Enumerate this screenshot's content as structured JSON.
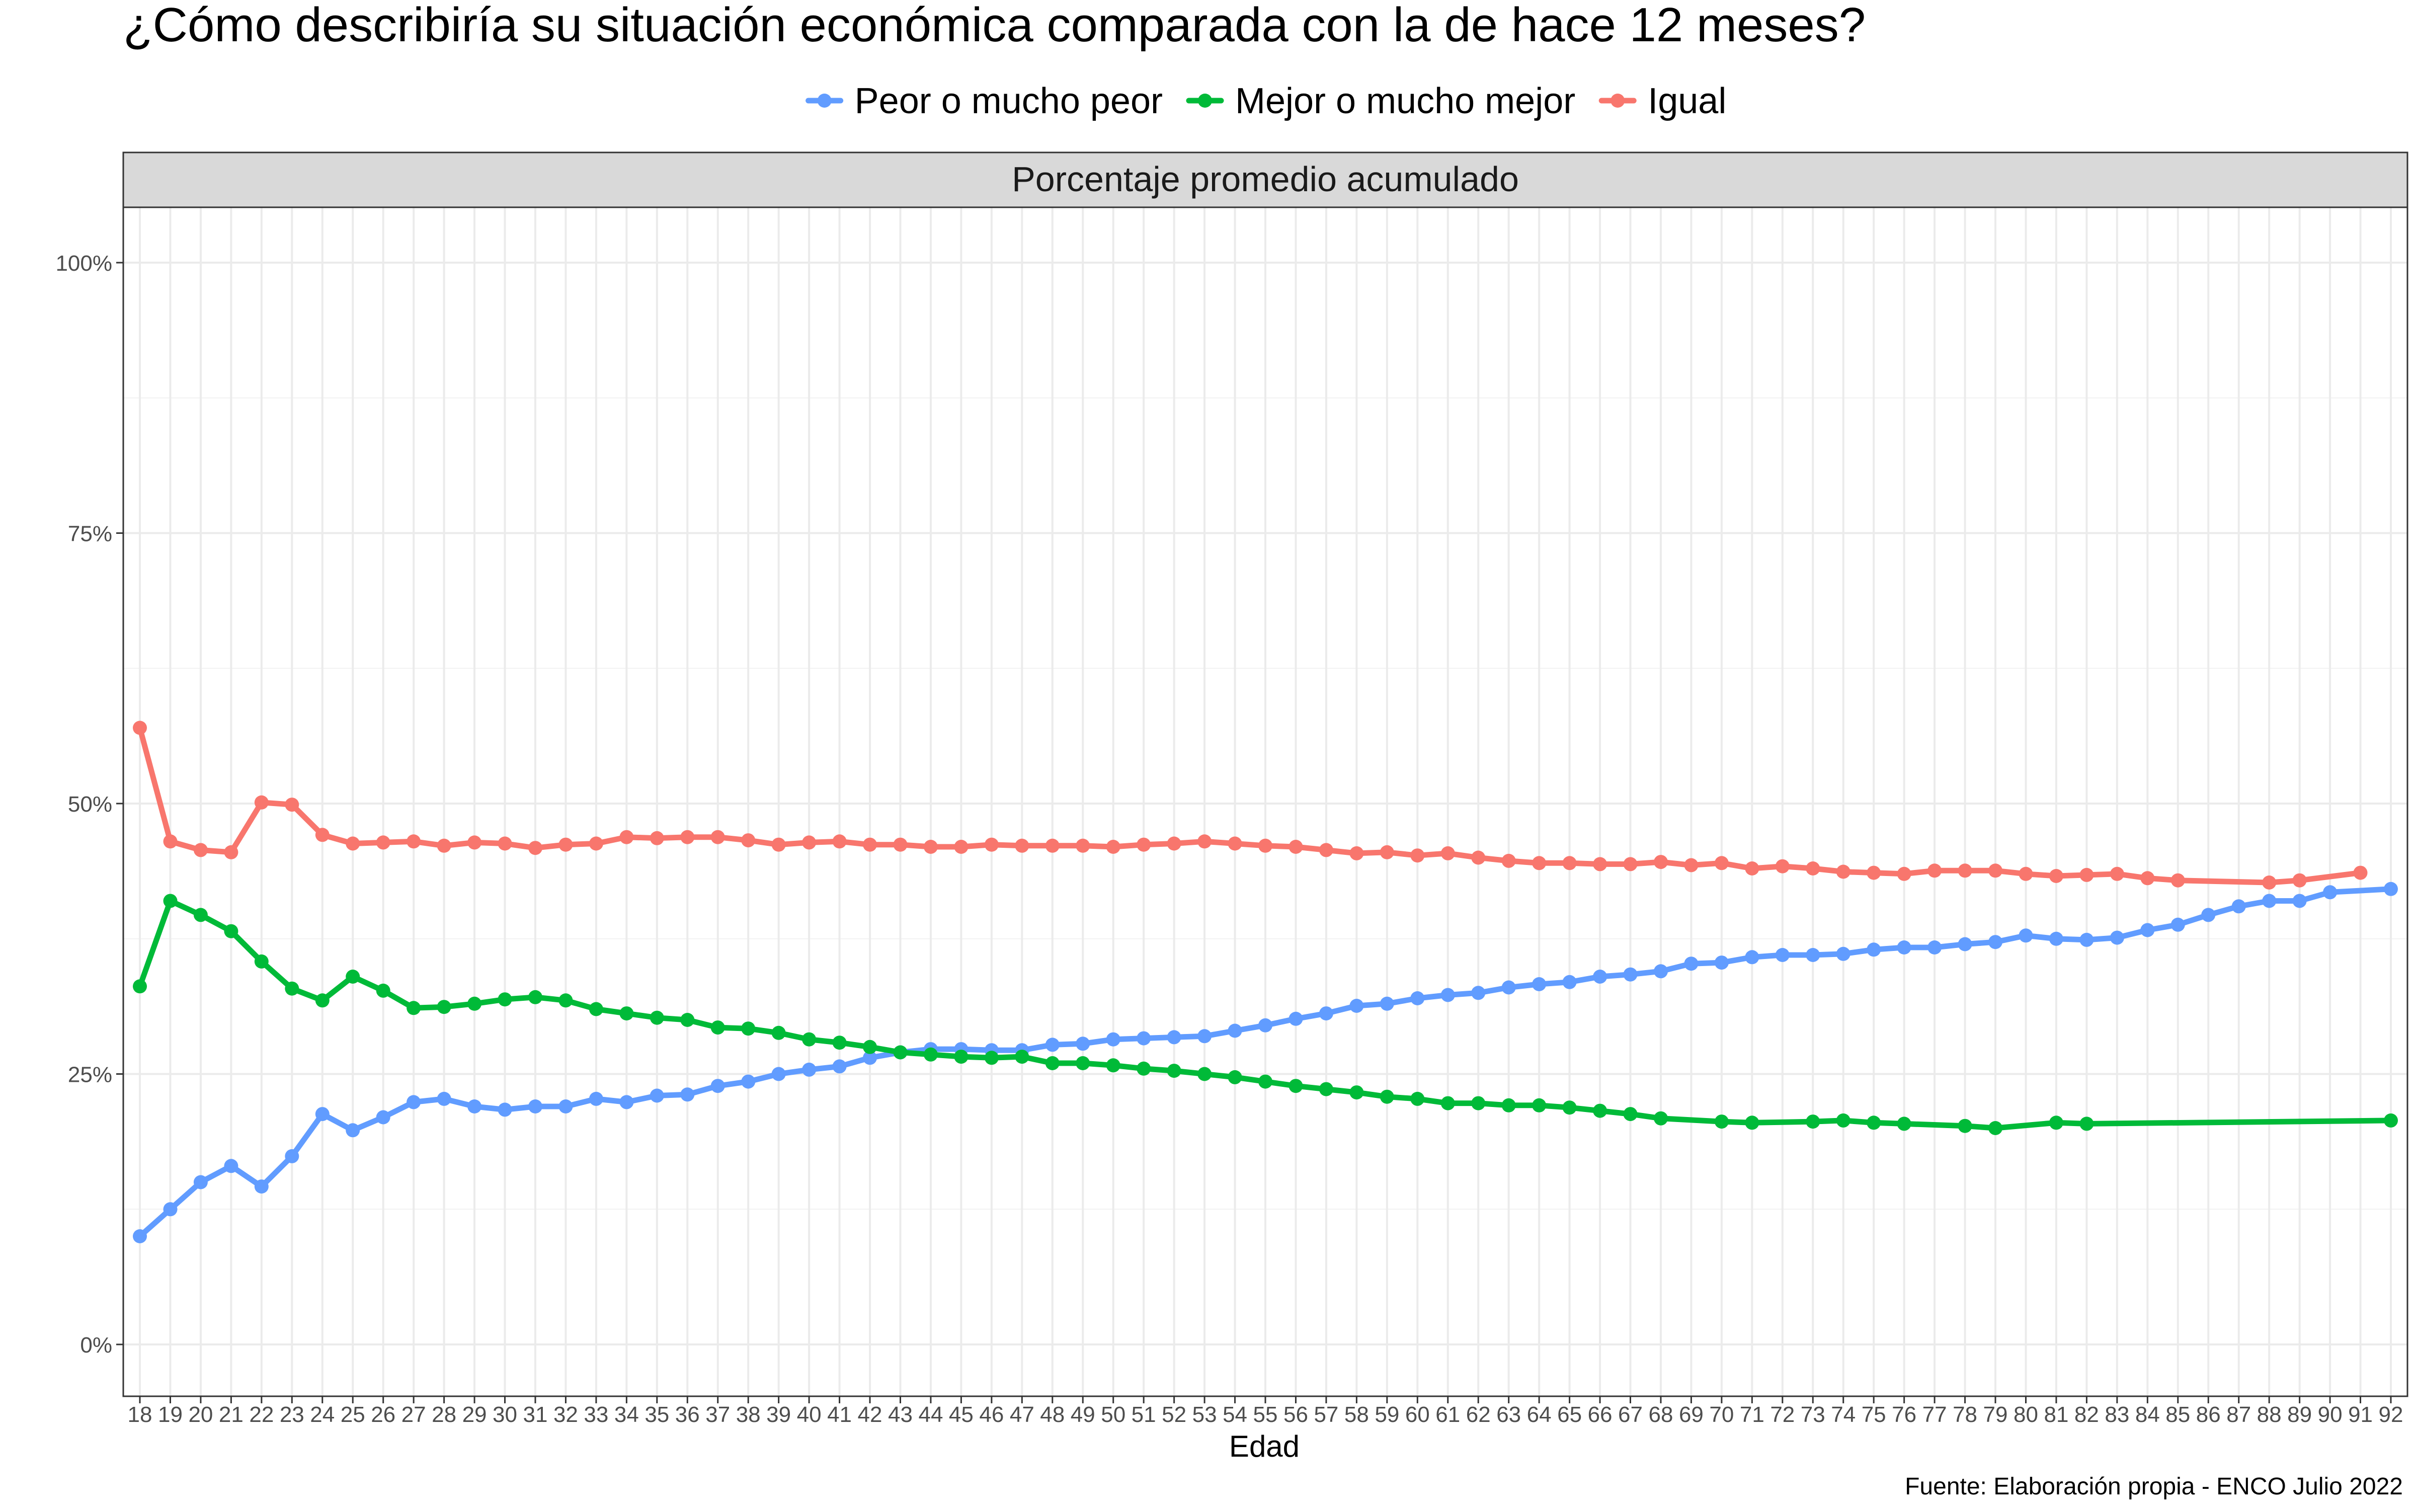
{
  "chart_data": {
    "type": "line",
    "title": "¿Cómo describiría su situación económica comparada con la de hace 12 meses?",
    "facet_label": "Porcentaje promedio acumulado",
    "xlabel": "Edad",
    "ylabel": "",
    "caption": "Fuente: Elaboración propia - ENCO Julio 2022",
    "legend_position": "top",
    "grid": true,
    "xlim": [
      18,
      92
    ],
    "ylim": [
      0,
      1
    ],
    "y_ticks": [
      0,
      0.25,
      0.5,
      0.75,
      1
    ],
    "y_tick_labels": [
      "0%",
      "25%",
      "50%",
      "75%",
      "100%"
    ],
    "x_ticks": [
      18,
      19,
      20,
      21,
      22,
      23,
      24,
      25,
      26,
      27,
      28,
      29,
      30,
      31,
      32,
      33,
      34,
      35,
      36,
      37,
      38,
      39,
      40,
      41,
      42,
      43,
      44,
      45,
      46,
      47,
      48,
      49,
      50,
      51,
      52,
      53,
      54,
      55,
      56,
      57,
      58,
      59,
      60,
      61,
      62,
      63,
      64,
      65,
      66,
      67,
      68,
      69,
      70,
      71,
      72,
      73,
      74,
      75,
      76,
      77,
      78,
      79,
      80,
      81,
      82,
      83,
      84,
      85,
      86,
      87,
      88,
      89,
      90,
      91,
      92
    ],
    "series": [
      {
        "name": "Peor o mucho peor",
        "color": "#619CFF",
        "x": [
          18,
          19,
          20,
          21,
          22,
          23,
          24,
          25,
          26,
          27,
          28,
          29,
          30,
          31,
          32,
          33,
          34,
          35,
          36,
          37,
          38,
          39,
          40,
          41,
          42,
          43,
          44,
          45,
          46,
          47,
          48,
          49,
          50,
          51,
          52,
          53,
          54,
          55,
          56,
          57,
          58,
          59,
          60,
          61,
          62,
          63,
          64,
          65,
          66,
          67,
          68,
          69,
          70,
          71,
          72,
          73,
          74,
          75,
          76,
          77,
          78,
          79,
          80,
          81,
          82,
          83,
          84,
          85,
          86,
          87,
          88,
          89,
          90,
          92
        ],
        "values": [
          0.1,
          0.125,
          0.15,
          0.165,
          0.146,
          0.174,
          0.213,
          0.198,
          0.21,
          0.224,
          0.227,
          0.22,
          0.217,
          0.22,
          0.22,
          0.227,
          0.224,
          0.23,
          0.231,
          0.239,
          0.243,
          0.25,
          0.254,
          0.257,
          0.265,
          0.27,
          0.273,
          0.273,
          0.272,
          0.272,
          0.277,
          0.278,
          0.282,
          0.283,
          0.284,
          0.285,
          0.29,
          0.295,
          0.301,
          0.306,
          0.313,
          0.315,
          0.32,
          0.323,
          0.325,
          0.33,
          0.333,
          0.335,
          0.34,
          0.342,
          0.345,
          0.352,
          0.353,
          0.358,
          0.36,
          0.36,
          0.361,
          0.365,
          0.367,
          0.367,
          0.37,
          0.372,
          0.378,
          0.375,
          0.374,
          0.376,
          0.383,
          0.388,
          0.397,
          0.405,
          0.41,
          0.41,
          0.418,
          0.421
        ]
      },
      {
        "name": "Mejor o mucho mejor",
        "color": "#00BA38",
        "x": [
          18,
          19,
          20,
          21,
          22,
          23,
          24,
          25,
          26,
          27,
          28,
          29,
          30,
          31,
          32,
          33,
          34,
          35,
          36,
          37,
          38,
          39,
          40,
          41,
          42,
          43,
          44,
          45,
          46,
          47,
          48,
          49,
          50,
          51,
          52,
          53,
          54,
          55,
          56,
          57,
          58,
          59,
          60,
          61,
          62,
          63,
          64,
          65,
          66,
          67,
          68,
          70,
          71,
          73,
          74,
          75,
          76,
          78,
          79,
          81,
          82,
          92
        ],
        "values": [
          0.331,
          0.41,
          0.397,
          0.382,
          0.354,
          0.329,
          0.318,
          0.34,
          0.327,
          0.311,
          0.312,
          0.315,
          0.319,
          0.321,
          0.318,
          0.31,
          0.306,
          0.302,
          0.3,
          0.293,
          0.292,
          0.288,
          0.282,
          0.279,
          0.275,
          0.27,
          0.268,
          0.266,
          0.265,
          0.266,
          0.26,
          0.26,
          0.258,
          0.255,
          0.253,
          0.25,
          0.247,
          0.243,
          0.239,
          0.236,
          0.233,
          0.229,
          0.227,
          0.223,
          0.223,
          0.221,
          0.221,
          0.219,
          0.216,
          0.213,
          0.209,
          0.206,
          0.205,
          0.206,
          0.207,
          0.205,
          0.204,
          0.202,
          0.2,
          0.205,
          0.204,
          0.207
        ]
      },
      {
        "name": "Igual",
        "color": "#F8766D",
        "x": [
          18,
          19,
          20,
          21,
          22,
          23,
          24,
          25,
          26,
          27,
          28,
          29,
          30,
          31,
          32,
          33,
          34,
          35,
          36,
          37,
          38,
          39,
          40,
          41,
          42,
          43,
          44,
          45,
          46,
          47,
          48,
          49,
          50,
          51,
          52,
          53,
          54,
          55,
          56,
          57,
          58,
          59,
          60,
          61,
          62,
          63,
          64,
          65,
          66,
          67,
          68,
          69,
          70,
          71,
          72,
          73,
          74,
          75,
          76,
          77,
          78,
          79,
          80,
          81,
          82,
          83,
          84,
          85,
          88,
          89,
          91
        ],
        "values": [
          0.57,
          0.465,
          0.457,
          0.455,
          0.501,
          0.499,
          0.471,
          0.463,
          0.464,
          0.465,
          0.461,
          0.464,
          0.463,
          0.459,
          0.462,
          0.463,
          0.469,
          0.468,
          0.469,
          0.469,
          0.466,
          0.462,
          0.464,
          0.465,
          0.462,
          0.462,
          0.46,
          0.46,
          0.462,
          0.461,
          0.461,
          0.461,
          0.46,
          0.462,
          0.463,
          0.465,
          0.463,
          0.461,
          0.46,
          0.457,
          0.454,
          0.455,
          0.452,
          0.454,
          0.45,
          0.447,
          0.445,
          0.445,
          0.444,
          0.444,
          0.446,
          0.443,
          0.445,
          0.44,
          0.442,
          0.44,
          0.437,
          0.436,
          0.435,
          0.438,
          0.438,
          0.438,
          0.435,
          0.433,
          0.434,
          0.435,
          0.431,
          0.429,
          0.427,
          0.429,
          0.436
        ]
      }
    ]
  }
}
